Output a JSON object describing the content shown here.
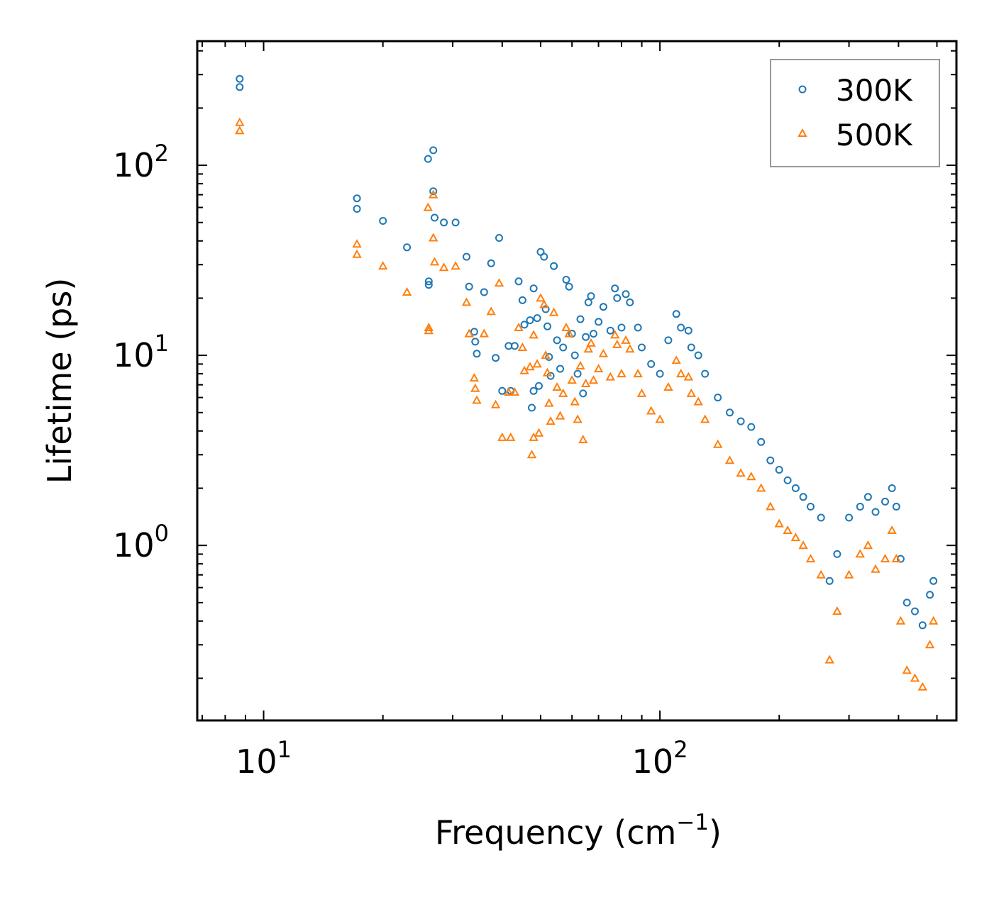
{
  "chart_data": {
    "type": "scatter",
    "title": "",
    "xlabel": "Frequency (cm",
    "xlabel_sup": "−1",
    "xlabel_tail": ")",
    "ylabel": "Lifetime (ps)",
    "xscale": "log",
    "yscale": "log",
    "xlim": [
      6.8,
      560
    ],
    "ylim": [
      0.12,
      450
    ],
    "x_ticks": [
      {
        "value": 10,
        "base": "10",
        "exp": "1"
      },
      {
        "value": 100,
        "base": "10",
        "exp": "2"
      }
    ],
    "y_ticks": [
      {
        "value": 1,
        "base": "10",
        "exp": "0"
      },
      {
        "value": 10,
        "base": "10",
        "exp": "1"
      },
      {
        "value": 100,
        "base": "10",
        "exp": "2"
      }
    ],
    "legend_position": "top-right",
    "series": [
      {
        "name": "300K",
        "color": "#1f77b4",
        "marker": "circle",
        "points": [
          [
            8.7,
            285
          ],
          [
            8.7,
            258
          ],
          [
            17.2,
            67
          ],
          [
            17.2,
            59
          ],
          [
            20,
            51
          ],
          [
            23,
            37
          ],
          [
            26,
            108
          ],
          [
            26.8,
            120
          ],
          [
            26.8,
            73
          ],
          [
            27,
            53
          ],
          [
            28.5,
            50
          ],
          [
            30.5,
            50
          ],
          [
            26.1,
            24.5
          ],
          [
            26.1,
            23.5
          ],
          [
            32.5,
            33
          ],
          [
            33,
            23
          ],
          [
            34,
            13.3
          ],
          [
            34.2,
            11.8
          ],
          [
            34.5,
            10.2
          ],
          [
            36,
            21.5
          ],
          [
            37.5,
            30.5
          ],
          [
            38.5,
            9.7
          ],
          [
            39.3,
            41.5
          ],
          [
            40,
            6.5
          ],
          [
            41.5,
            11.2
          ],
          [
            42,
            6.5
          ],
          [
            43,
            11.2
          ],
          [
            44,
            24.5
          ],
          [
            45,
            19.5
          ],
          [
            45.5,
            14.5
          ],
          [
            47,
            15.3
          ],
          [
            47.5,
            5.3
          ],
          [
            48,
            22.5
          ],
          [
            48,
            6.5
          ],
          [
            49,
            15.7
          ],
          [
            49.5,
            6.9
          ],
          [
            50,
            35
          ],
          [
            51,
            33
          ],
          [
            51.5,
            17.5
          ],
          [
            52,
            14.2
          ],
          [
            52.5,
            9.8
          ],
          [
            53,
            7.8
          ],
          [
            54,
            29.5
          ],
          [
            55,
            12
          ],
          [
            56,
            8.5
          ],
          [
            57,
            11
          ],
          [
            58,
            25
          ],
          [
            59,
            23
          ],
          [
            60,
            13
          ],
          [
            61,
            10
          ],
          [
            62,
            8
          ],
          [
            63,
            15.5
          ],
          [
            64,
            6.3
          ],
          [
            65,
            12.5
          ],
          [
            66,
            19
          ],
          [
            67,
            20.5
          ],
          [
            68,
            13
          ],
          [
            70,
            15
          ],
          [
            72,
            18
          ],
          [
            75,
            13.5
          ],
          [
            77,
            22.5
          ],
          [
            78,
            20
          ],
          [
            80,
            14
          ],
          [
            82,
            21
          ],
          [
            84,
            19
          ],
          [
            88,
            14
          ],
          [
            90,
            11
          ],
          [
            95,
            9
          ],
          [
            100,
            8
          ],
          [
            105,
            12
          ],
          [
            110,
            16.5
          ],
          [
            113,
            14
          ],
          [
            118,
            13.5
          ],
          [
            120,
            11
          ],
          [
            125,
            10
          ],
          [
            130,
            8
          ],
          [
            140,
            6
          ],
          [
            150,
            5
          ],
          [
            160,
            4.5
          ],
          [
            170,
            4.2
          ],
          [
            180,
            3.5
          ],
          [
            190,
            2.8
          ],
          [
            200,
            2.5
          ],
          [
            210,
            2.2
          ],
          [
            220,
            2
          ],
          [
            230,
            1.8
          ],
          [
            240,
            1.6
          ],
          [
            255,
            1.4
          ],
          [
            268,
            0.65
          ],
          [
            280,
            0.9
          ],
          [
            300,
            1.4
          ],
          [
            320,
            1.6
          ],
          [
            335,
            1.8
          ],
          [
            350,
            1.5
          ],
          [
            370,
            1.7
          ],
          [
            385,
            2
          ],
          [
            395,
            1.6
          ],
          [
            405,
            0.85
          ],
          [
            420,
            0.5
          ],
          [
            440,
            0.45
          ],
          [
            460,
            0.38
          ],
          [
            480,
            0.55
          ],
          [
            490,
            0.65
          ]
        ]
      },
      {
        "name": "500K",
        "color": "#ff7f0e",
        "marker": "triangle",
        "points": [
          [
            8.7,
            168
          ],
          [
            8.7,
            152
          ],
          [
            17.2,
            38.5
          ],
          [
            17.2,
            34
          ],
          [
            20,
            29.5
          ],
          [
            23,
            21.5
          ],
          [
            26,
            60
          ],
          [
            26.8,
            70
          ],
          [
            26.8,
            41.5
          ],
          [
            27,
            31
          ],
          [
            28.5,
            29
          ],
          [
            30.5,
            29.5
          ],
          [
            26.1,
            14
          ],
          [
            26.1,
            13.5
          ],
          [
            32.5,
            19
          ],
          [
            33,
            13
          ],
          [
            34,
            7.6
          ],
          [
            34.2,
            6.7
          ],
          [
            34.5,
            5.8
          ],
          [
            36,
            13
          ],
          [
            37.5,
            17
          ],
          [
            38.5,
            5.5
          ],
          [
            39.3,
            24
          ],
          [
            40,
            3.7
          ],
          [
            41.5,
            6.4
          ],
          [
            42,
            3.7
          ],
          [
            43,
            6.4
          ],
          [
            44,
            14
          ],
          [
            45,
            11
          ],
          [
            45.5,
            8.3
          ],
          [
            47,
            8.7
          ],
          [
            47.5,
            3
          ],
          [
            48,
            12.8
          ],
          [
            48,
            3.7
          ],
          [
            49,
            9
          ],
          [
            49.5,
            3.9
          ],
          [
            50,
            20
          ],
          [
            51,
            18.5
          ],
          [
            51.5,
            10
          ],
          [
            52,
            8.1
          ],
          [
            52.5,
            5.6
          ],
          [
            53,
            4.5
          ],
          [
            54,
            16.8
          ],
          [
            55,
            6.8
          ],
          [
            56,
            4.8
          ],
          [
            57,
            6.3
          ],
          [
            58,
            14
          ],
          [
            59,
            13
          ],
          [
            60,
            7.4
          ],
          [
            61,
            5.7
          ],
          [
            62,
            4.6
          ],
          [
            63,
            8.8
          ],
          [
            64,
            3.6
          ],
          [
            65,
            7.1
          ],
          [
            66,
            10.8
          ],
          [
            67,
            11.6
          ],
          [
            68,
            7.4
          ],
          [
            70,
            8.5
          ],
          [
            72,
            10.2
          ],
          [
            75,
            7.7
          ],
          [
            77,
            12.8
          ],
          [
            78,
            11.4
          ],
          [
            80,
            8
          ],
          [
            82,
            12
          ],
          [
            84,
            10.8
          ],
          [
            88,
            8
          ],
          [
            90,
            6.3
          ],
          [
            95,
            5.1
          ],
          [
            100,
            4.6
          ],
          [
            105,
            6.8
          ],
          [
            110,
            9.4
          ],
          [
            113,
            8
          ],
          [
            118,
            7.7
          ],
          [
            120,
            6.3
          ],
          [
            125,
            5.7
          ],
          [
            130,
            4.6
          ],
          [
            140,
            3.4
          ],
          [
            150,
            2.8
          ],
          [
            160,
            2.4
          ],
          [
            170,
            2.3
          ],
          [
            180,
            2
          ],
          [
            190,
            1.6
          ],
          [
            200,
            1.3
          ],
          [
            210,
            1.2
          ],
          [
            220,
            1.1
          ],
          [
            230,
            1.0
          ],
          [
            240,
            0.85
          ],
          [
            255,
            0.7
          ],
          [
            268,
            0.25
          ],
          [
            280,
            0.45
          ],
          [
            300,
            0.7
          ],
          [
            320,
            0.9
          ],
          [
            335,
            1.0
          ],
          [
            350,
            0.75
          ],
          [
            370,
            0.85
          ],
          [
            385,
            1.2
          ],
          [
            395,
            0.85
          ],
          [
            405,
            0.4
          ],
          [
            420,
            0.22
          ],
          [
            440,
            0.2
          ],
          [
            460,
            0.18
          ],
          [
            480,
            0.3
          ],
          [
            490,
            0.4
          ]
        ]
      }
    ]
  }
}
